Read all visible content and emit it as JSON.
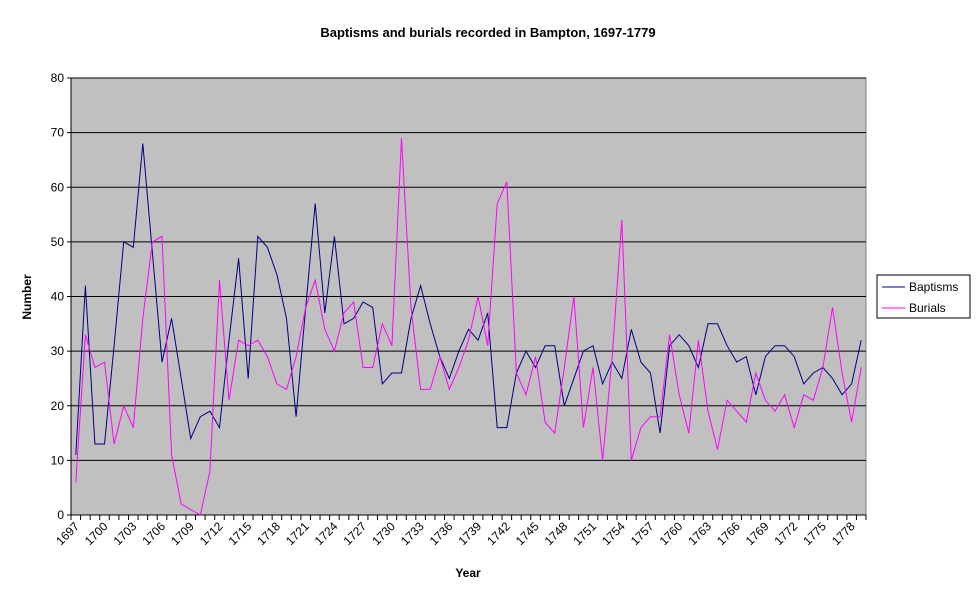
{
  "chart_data": {
    "type": "line",
    "title": "Baptisms and burials recorded in Bampton, 1697-1779",
    "xlabel": "Year",
    "ylabel": "Number",
    "ylim": [
      0,
      80
    ],
    "yticks": [
      0,
      10,
      20,
      30,
      40,
      50,
      60,
      70,
      80
    ],
    "xtick_labels": [
      "1697",
      "1700",
      "1703",
      "1706",
      "1709",
      "1712",
      "1715",
      "1718",
      "1721",
      "1724",
      "1727",
      "1730",
      "1733",
      "1736",
      "1739",
      "1742",
      "1745",
      "1748",
      "1751",
      "1754",
      "1757",
      "1760",
      "1763",
      "1766",
      "1769",
      "1772",
      "1775",
      "1778"
    ],
    "x_start": 1697,
    "x_end": 1779,
    "grid": "horizontal major gridlines",
    "plot_background": "#C0C0C0",
    "legend_position": "right",
    "series": [
      {
        "name": "Baptisms",
        "color": "#000080",
        "values": [
          11,
          42,
          13,
          13,
          31,
          50,
          49,
          68,
          48,
          28,
          36,
          25,
          14,
          18,
          19,
          16,
          32,
          47,
          25,
          51,
          49,
          44,
          36,
          18,
          38,
          57,
          37,
          51,
          35,
          36,
          39,
          38,
          24,
          26,
          26,
          36,
          42,
          35,
          29,
          25,
          30,
          34,
          32,
          37,
          16,
          16,
          26,
          30,
          27,
          31,
          31,
          20,
          25,
          30,
          31,
          24,
          28,
          25,
          34,
          28,
          26,
          15,
          31,
          33,
          31,
          27,
          35,
          35,
          31,
          28,
          29,
          22,
          29,
          31,
          31,
          29,
          24,
          26,
          27,
          25,
          22,
          24,
          32
        ]
      },
      {
        "name": "Burials",
        "color": "#FF00FF",
        "values": [
          6,
          33,
          27,
          28,
          13,
          20,
          16,
          36,
          50,
          51,
          11,
          2,
          1,
          0,
          8,
          43,
          21,
          32,
          31,
          32,
          29,
          24,
          23,
          29,
          38,
          43,
          34,
          30,
          37,
          39,
          27,
          27,
          35,
          31,
          69,
          38,
          23,
          23,
          29,
          23,
          27,
          32,
          40,
          31,
          57,
          61,
          26,
          22,
          29,
          17,
          15,
          27,
          40,
          16,
          27,
          10,
          29,
          54,
          10,
          16,
          18,
          18,
          33,
          22,
          15,
          32,
          19,
          12,
          21,
          19,
          17,
          26,
          21,
          19,
          22,
          16,
          22,
          21,
          27,
          38,
          26,
          17,
          27
        ]
      }
    ]
  }
}
